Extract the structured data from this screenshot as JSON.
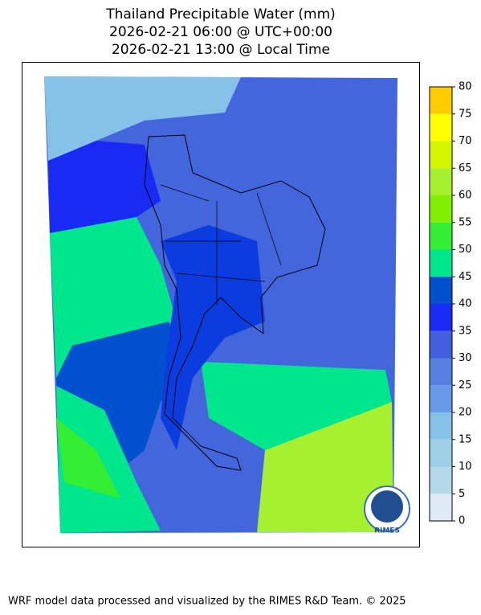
{
  "title": [
    "Thailand Precipitable Water (mm)",
    "2026-02-21 06:00 @ UTC+00:00",
    "2026-02-21 13:00 @ Local Time"
  ],
  "colorbar": {
    "ticks": [
      0,
      5,
      10,
      15,
      20,
      25,
      30,
      35,
      40,
      45,
      50,
      55,
      60,
      65,
      70,
      75,
      80
    ],
    "colors": [
      "#deebf7",
      "#b4d9e8",
      "#9dd0e6",
      "#86c2e8",
      "#6699e8",
      "#5580e0",
      "#4060e0",
      "#1a2af5",
      "#0050d0",
      "#00e68c",
      "#33ee33",
      "#80f000",
      "#a6f030",
      "#d4f500",
      "#ffff00",
      "#ffcc00"
    ]
  },
  "logo_text": "RIMES",
  "footer": "WRF model data processed and visualized by the RIMES R&D Team. © 2025"
}
